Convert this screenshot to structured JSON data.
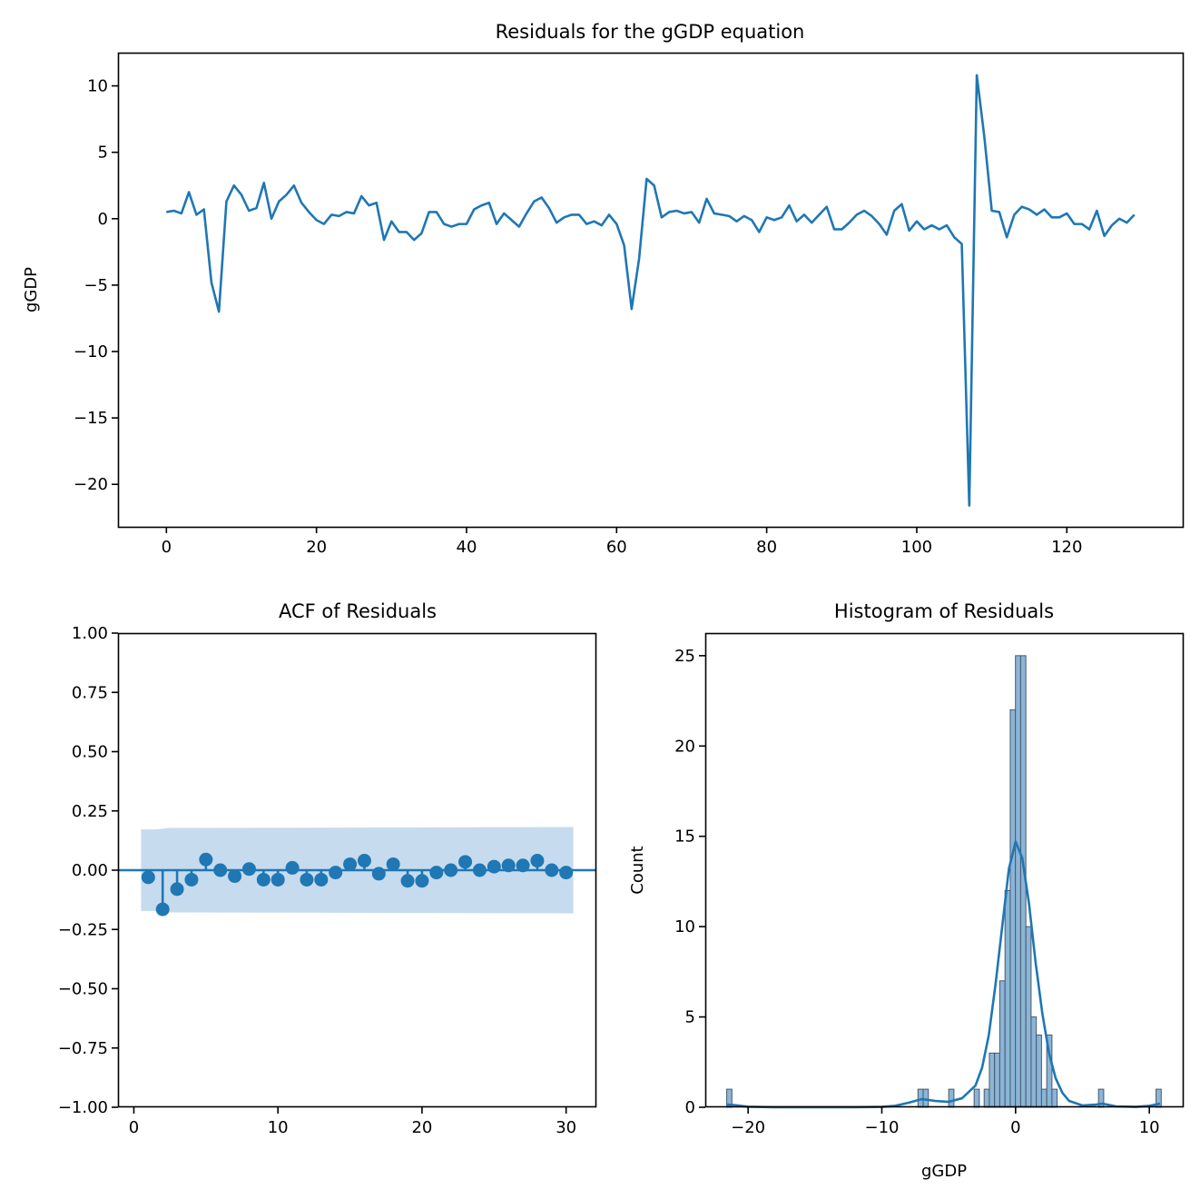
{
  "colors": {
    "line": "#1f77b4",
    "band": "#c6dbee",
    "hist_fill": "#8ab5d8",
    "hist_edge": "#4a5a68"
  },
  "chart_data": [
    {
      "type": "line",
      "title": "Residuals for the gGDP equation",
      "xlabel": "",
      "ylabel": "gGDP",
      "xlim": [
        -6.45,
        135.45
      ],
      "ylim": [
        -23.2,
        12.5
      ],
      "xticks": [
        0,
        20,
        40,
        60,
        80,
        100,
        120
      ],
      "xtick_labels": [
        "0",
        "20",
        "40",
        "60",
        "80",
        "100",
        "120"
      ],
      "yticks": [
        10,
        5,
        0,
        -5,
        -10,
        -15,
        -20
      ],
      "ytick_labels": [
        "10",
        "5",
        "0",
        "−5",
        "−10",
        "−15",
        "−20"
      ],
      "series": [
        {
          "name": "residuals",
          "values": [
            0.5,
            0.6,
            0.4,
            2.0,
            0.3,
            0.7,
            -4.8,
            -7.0,
            1.3,
            2.5,
            1.8,
            0.6,
            0.8,
            2.7,
            0.0,
            1.3,
            1.8,
            2.5,
            1.2,
            0.5,
            -0.1,
            -0.4,
            0.3,
            0.2,
            0.5,
            0.4,
            1.7,
            1.0,
            1.2,
            -1.6,
            -0.2,
            -1.0,
            -1.0,
            -1.6,
            -1.1,
            0.5,
            0.5,
            -0.4,
            -0.6,
            -0.4,
            -0.4,
            0.7,
            1.0,
            1.2,
            -0.4,
            0.4,
            -0.1,
            -0.6,
            0.4,
            1.3,
            1.6,
            0.8,
            -0.3,
            0.1,
            0.3,
            0.3,
            -0.4,
            -0.2,
            -0.5,
            0.3,
            -0.4,
            -2.0,
            -6.8,
            -3.0,
            3.0,
            2.5,
            0.1,
            0.5,
            0.6,
            0.4,
            0.5,
            -0.3,
            1.5,
            0.4,
            0.3,
            0.2,
            -0.2,
            0.2,
            -0.1,
            -1.0,
            0.1,
            -0.1,
            0.1,
            1.0,
            -0.2,
            0.3,
            -0.3,
            0.3,
            0.9,
            -0.8,
            -0.8,
            -0.3,
            0.3,
            0.6,
            0.2,
            -0.4,
            -1.2,
            0.6,
            1.1,
            -0.9,
            -0.2,
            -0.8,
            -0.5,
            -0.8,
            -0.5,
            -1.4,
            -1.9,
            -21.6,
            10.8,
            6.2,
            0.6,
            0.5,
            -1.4,
            0.3,
            0.9,
            0.7,
            0.3,
            0.7,
            0.1,
            0.1,
            0.4,
            -0.4,
            -0.4,
            -0.8,
            0.6,
            -1.3,
            -0.5,
            0.0,
            -0.3,
            0.3
          ]
        }
      ]
    },
    {
      "type": "scatter",
      "subtype": "acf-stem",
      "title": "ACF of Residuals",
      "xlabel": "",
      "ylabel": "",
      "xlim": [
        -1.1,
        32.1
      ],
      "ylim": [
        -1.0,
        1.0
      ],
      "xticks": [
        0,
        10,
        20,
        30
      ],
      "xtick_labels": [
        "0",
        "10",
        "20",
        "30"
      ],
      "yticks": [
        1.0,
        0.75,
        0.5,
        0.25,
        0.0,
        -0.25,
        -0.5,
        -0.75,
        -1.0
      ],
      "ytick_labels": [
        "1.00",
        "0.75",
        "0.50",
        "0.25",
        "0.00",
        "−0.25",
        "−0.50",
        "−0.75",
        "−1.00"
      ],
      "lags": [
        1,
        2,
        3,
        4,
        5,
        6,
        7,
        8,
        9,
        10,
        11,
        12,
        13,
        14,
        15,
        16,
        17,
        18,
        19,
        20,
        21,
        22,
        23,
        24,
        25,
        26,
        27,
        28,
        29,
        30
      ],
      "values": [
        -0.03,
        -0.165,
        -0.08,
        -0.04,
        0.045,
        0.0,
        -0.025,
        0.005,
        -0.04,
        -0.04,
        0.01,
        -0.04,
        -0.04,
        -0.01,
        0.025,
        0.04,
        -0.015,
        0.025,
        -0.045,
        -0.045,
        -0.01,
        0.0,
        0.035,
        0.0,
        0.015,
        0.02,
        0.02,
        0.04,
        0.0,
        -0.01
      ],
      "confidence_band": {
        "lags": [
          0.5,
          1.5,
          2.5,
          30.5
        ],
        "upper": [
          0.172,
          0.172,
          0.178,
          0.182
        ],
        "lower": [
          -0.172,
          -0.172,
          -0.178,
          -0.182
        ]
      }
    },
    {
      "type": "bar",
      "subtype": "histogram-kde",
      "title": "Histogram of Residuals",
      "xlabel": "gGDP",
      "ylabel": "Count",
      "xlim": [
        -23.2,
        12.5
      ],
      "ylim": [
        0,
        26.25
      ],
      "xticks": [
        -20,
        -10,
        0,
        10
      ],
      "xtick_labels": [
        "−20",
        "−10",
        "0",
        "10"
      ],
      "yticks": [
        0,
        5,
        10,
        15,
        20,
        25
      ],
      "ytick_labels": [
        "0",
        "5",
        "10",
        "15",
        "20",
        "25"
      ],
      "bin_width": 0.39,
      "bins": [
        {
          "start": -21.6,
          "count": 1
        },
        {
          "start": -7.3,
          "count": 1
        },
        {
          "start": -6.91,
          "count": 1
        },
        {
          "start": -5.0,
          "count": 1
        },
        {
          "start": -3.1,
          "count": 1
        },
        {
          "start": -2.35,
          "count": 1
        },
        {
          "start": -1.96,
          "count": 3
        },
        {
          "start": -1.57,
          "count": 3
        },
        {
          "start": -1.18,
          "count": 7
        },
        {
          "start": -0.79,
          "count": 12
        },
        {
          "start": -0.4,
          "count": 22
        },
        {
          "start": -0.01,
          "count": 25
        },
        {
          "start": 0.38,
          "count": 25
        },
        {
          "start": 0.77,
          "count": 10
        },
        {
          "start": 1.16,
          "count": 5
        },
        {
          "start": 1.55,
          "count": 4
        },
        {
          "start": 1.94,
          "count": 1
        },
        {
          "start": 2.33,
          "count": 4
        },
        {
          "start": 2.72,
          "count": 1
        },
        {
          "start": 6.2,
          "count": 1
        },
        {
          "start": 10.5,
          "count": 1
        }
      ],
      "kde": {
        "x": [
          -21.6,
          -21.0,
          -20.0,
          -18.0,
          -15.0,
          -12.0,
          -10.0,
          -9.0,
          -8.0,
          -7.0,
          -6.0,
          -5.0,
          -4.0,
          -3.0,
          -2.5,
          -2.0,
          -1.5,
          -1.0,
          -0.5,
          0.0,
          0.5,
          1.0,
          1.5,
          2.0,
          2.5,
          3.0,
          3.5,
          4.0,
          5.0,
          6.0,
          6.5,
          7.5,
          9.0,
          10.0,
          10.8
        ],
        "y": [
          0.15,
          0.12,
          0.03,
          0.0,
          0.0,
          0.0,
          0.02,
          0.08,
          0.25,
          0.45,
          0.35,
          0.3,
          0.5,
          1.2,
          2.2,
          4.0,
          6.8,
          10.0,
          13.2,
          14.7,
          13.8,
          11.3,
          8.0,
          5.2,
          3.0,
          1.6,
          0.8,
          0.35,
          0.1,
          0.15,
          0.2,
          0.05,
          0.02,
          0.08,
          0.2
        ]
      }
    }
  ]
}
